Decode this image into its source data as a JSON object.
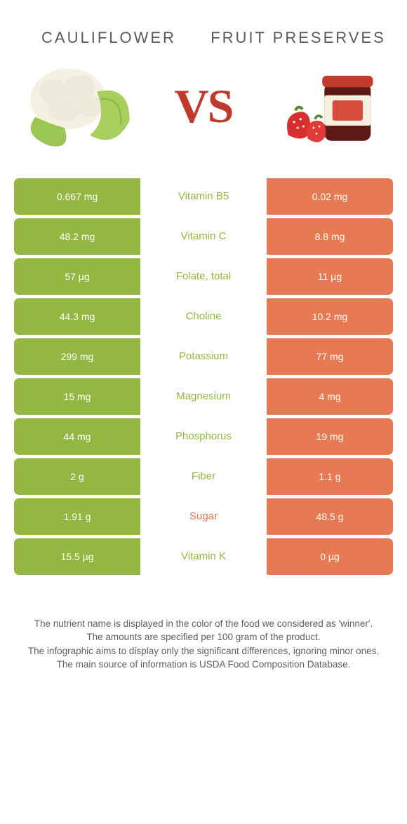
{
  "foods": {
    "left": {
      "name": "Cauliflower",
      "color": "#94b742"
    },
    "right": {
      "name": "Fruit preserves",
      "color": "#e87a53"
    }
  },
  "vs_label": "VS",
  "nutrients": [
    {
      "name": "Vitamin B5",
      "left": "0.667 mg",
      "right": "0.02 mg",
      "winner": "left"
    },
    {
      "name": "Vitamin C",
      "left": "48.2 mg",
      "right": "8.8 mg",
      "winner": "left"
    },
    {
      "name": "Folate, total",
      "left": "57 µg",
      "right": "11 µg",
      "winner": "left"
    },
    {
      "name": "Choline",
      "left": "44.3 mg",
      "right": "10.2 mg",
      "winner": "left"
    },
    {
      "name": "Potassium",
      "left": "299 mg",
      "right": "77 mg",
      "winner": "left"
    },
    {
      "name": "Magnesium",
      "left": "15 mg",
      "right": "4 mg",
      "winner": "left"
    },
    {
      "name": "Phosphorus",
      "left": "44 mg",
      "right": "19 mg",
      "winner": "left"
    },
    {
      "name": "Fiber",
      "left": "2 g",
      "right": "1.1 g",
      "winner": "left"
    },
    {
      "name": "Sugar",
      "left": "1.91 g",
      "right": "48.5 g",
      "winner": "right"
    },
    {
      "name": "Vitamin K",
      "left": "15.5 µg",
      "right": "0 µg",
      "winner": "left"
    }
  ],
  "footer_lines": [
    "The nutrient name is displayed in the color of the food we considered as 'winner'.",
    "The amounts are specified per 100 gram of the product.",
    "The infographic aims to display only the significant differences, ignoring minor ones.",
    "The main source of information is USDA Food Composition Database."
  ]
}
